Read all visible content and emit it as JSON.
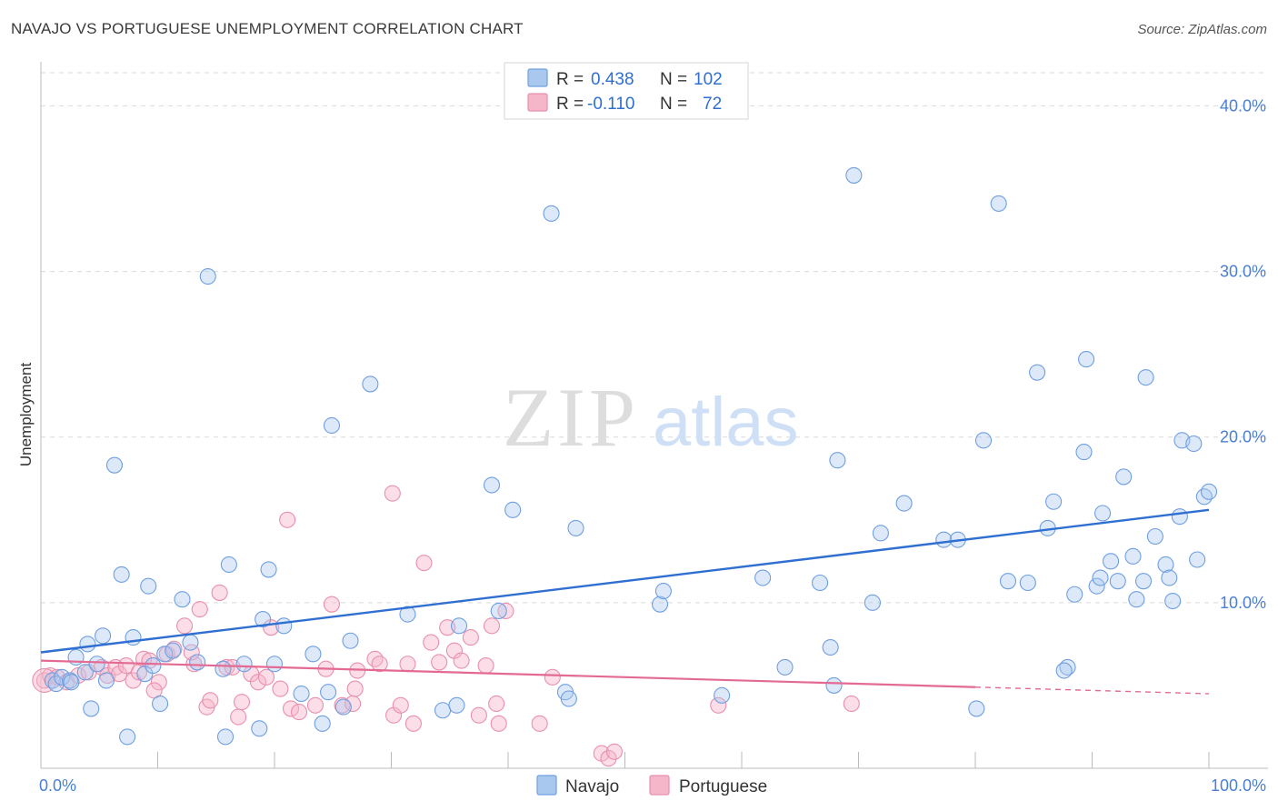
{
  "title": "NAVAJO VS PORTUGUESE UNEMPLOYMENT CORRELATION CHART",
  "source": "Source: ZipAtlas.com",
  "watermark": {
    "zip": "ZIP",
    "atlas": "atlas"
  },
  "colors": {
    "navajo_fill": "#a9c8f0",
    "navajo_stroke": "#6f9fe0",
    "navajo_line": "#2f6fd1",
    "portuguese_fill": "#f6b6c9",
    "portuguese_stroke": "#e890ad",
    "portuguese_line": "#e36a93",
    "grid": "#d9d9d9",
    "tick_text": "#4a7fd4"
  },
  "legend": {
    "rows": [
      {
        "r_label": "R =",
        "r_value": "0.438",
        "n_label": "N =",
        "n_value": "102",
        "series": "navajo"
      },
      {
        "r_label": "R =",
        "r_value": "-0.110",
        "n_label": "N =",
        "n_value": "72",
        "series": "portuguese"
      }
    ]
  },
  "bottom_legend": [
    "Navajo",
    "Portuguese"
  ],
  "chart_data": {
    "type": "scatter",
    "title": "NAVAJO VS PORTUGUESE UNEMPLOYMENT CORRELATION CHART",
    "xlabel": "",
    "ylabel": "Unemployment",
    "xlim": [
      0,
      100
    ],
    "ylim": [
      0,
      42
    ],
    "x_tick_labels": [
      {
        "value": 0,
        "label": "0.0%"
      },
      {
        "value": 100,
        "label": "100.0%"
      }
    ],
    "y_tick_labels": [
      {
        "value": 10,
        "label": "10.0%"
      },
      {
        "value": 20,
        "label": "20.0%"
      },
      {
        "value": 30,
        "label": "30.0%"
      },
      {
        "value": 40,
        "label": "40.0%"
      }
    ],
    "grid": true,
    "legend_position": "top-center",
    "series": [
      {
        "name": "Navajo",
        "r": 0.438,
        "n": 102,
        "trend": {
          "x": [
            0,
            100
          ],
          "y": [
            7.0,
            15.6
          ]
        },
        "points": [
          [
            1,
            5.3
          ],
          [
            1.3,
            5.1
          ],
          [
            1.8,
            5.5
          ],
          [
            2.5,
            5.3
          ],
          [
            2.6,
            5.2
          ],
          [
            3,
            6.7
          ],
          [
            3.8,
            5.8
          ],
          [
            4,
            7.5
          ],
          [
            4.3,
            3.6
          ],
          [
            4.8,
            6.3
          ],
          [
            5.3,
            8
          ],
          [
            5.6,
            5.3
          ],
          [
            6.3,
            18.3
          ],
          [
            6.9,
            11.7
          ],
          [
            7.4,
            1.9
          ],
          [
            7.9,
            7.9
          ],
          [
            8.9,
            5.7
          ],
          [
            9.2,
            11
          ],
          [
            9.6,
            6.2
          ],
          [
            10.2,
            3.9
          ],
          [
            10.6,
            6.9
          ],
          [
            11.3,
            7.1
          ],
          [
            12.1,
            10.2
          ],
          [
            12.8,
            7.6
          ],
          [
            13.4,
            6.4
          ],
          [
            14.3,
            29.7
          ],
          [
            15.6,
            6
          ],
          [
            15.8,
            1.9
          ],
          [
            16.1,
            12.3
          ],
          [
            17.4,
            6.3
          ],
          [
            18.7,
            2.4
          ],
          [
            19,
            9
          ],
          [
            19.5,
            12
          ],
          [
            20,
            6.3
          ],
          [
            20.8,
            8.6
          ],
          [
            22.3,
            4.5
          ],
          [
            23.3,
            6.9
          ],
          [
            24.1,
            2.7
          ],
          [
            24.6,
            4.6
          ],
          [
            24.9,
            20.7
          ],
          [
            25.9,
            3.7
          ],
          [
            26.5,
            7.7
          ],
          [
            28.2,
            23.2
          ],
          [
            31.4,
            9.3
          ],
          [
            34.4,
            3.5
          ],
          [
            35.6,
            3.8
          ],
          [
            35.8,
            8.6
          ],
          [
            39.2,
            9.5
          ],
          [
            38.6,
            17.1
          ],
          [
            40.4,
            15.6
          ],
          [
            43.7,
            33.5
          ],
          [
            44.9,
            4.6
          ],
          [
            45.2,
            4.2
          ],
          [
            45.8,
            14.5
          ],
          [
            53,
            9.9
          ],
          [
            53.3,
            10.7
          ],
          [
            58.3,
            4.4
          ],
          [
            61.8,
            11.5
          ],
          [
            63.7,
            6.1
          ],
          [
            66.7,
            11.2
          ],
          [
            67.6,
            7.3
          ],
          [
            67.9,
            5
          ],
          [
            68.2,
            18.6
          ],
          [
            69.6,
            35.8
          ],
          [
            71.2,
            10
          ],
          [
            71.9,
            14.2
          ],
          [
            73.9,
            16
          ],
          [
            77.3,
            13.8
          ],
          [
            78.5,
            13.8
          ],
          [
            80.7,
            19.8
          ],
          [
            80.1,
            3.6
          ],
          [
            82,
            34.1
          ],
          [
            82.8,
            11.3
          ],
          [
            84.5,
            11.2
          ],
          [
            85.3,
            23.9
          ],
          [
            86.2,
            14.5
          ],
          [
            86.7,
            16.1
          ],
          [
            87.9,
            6.1
          ],
          [
            87.6,
            5.9
          ],
          [
            88.5,
            10.5
          ],
          [
            89.3,
            19.1
          ],
          [
            89.5,
            24.7
          ],
          [
            90.4,
            11
          ],
          [
            90.7,
            11.5
          ],
          [
            90.9,
            15.4
          ],
          [
            91.6,
            12.5
          ],
          [
            92.2,
            11.3
          ],
          [
            92.7,
            17.6
          ],
          [
            93.5,
            12.8
          ],
          [
            93.8,
            10.2
          ],
          [
            94.4,
            11.3
          ],
          [
            94.6,
            23.6
          ],
          [
            95.4,
            14
          ],
          [
            96.3,
            12.3
          ],
          [
            96.6,
            11.5
          ],
          [
            96.9,
            10.1
          ],
          [
            97.5,
            15.2
          ],
          [
            97.7,
            19.8
          ],
          [
            98.7,
            19.6
          ],
          [
            99,
            12.6
          ],
          [
            99.6,
            16.4
          ],
          [
            100,
            16.7
          ]
        ]
      },
      {
        "name": "Portuguese",
        "r": -0.11,
        "n": 72,
        "trend": {
          "x": [
            0,
            80
          ],
          "y": [
            6.5,
            4.9
          ],
          "dashed_x": [
            80,
            100
          ],
          "dashed_y": [
            4.9,
            4.5
          ]
        },
        "points": [
          [
            0.3,
            5.3
          ],
          [
            0.8,
            5.6
          ],
          [
            1.4,
            5.5
          ],
          [
            2.2,
            5.2
          ],
          [
            3.2,
            5.6
          ],
          [
            4.1,
            5.8
          ],
          [
            5.2,
            6.1
          ],
          [
            5.7,
            5.6
          ],
          [
            6.4,
            6.1
          ],
          [
            6.7,
            5.7
          ],
          [
            7.3,
            6.2
          ],
          [
            7.9,
            5.3
          ],
          [
            8.4,
            5.8
          ],
          [
            8.8,
            6.6
          ],
          [
            9.3,
            6.5
          ],
          [
            10.1,
            5.2
          ],
          [
            10.8,
            6.9
          ],
          [
            11.4,
            7.2
          ],
          [
            12.3,
            8.6
          ],
          [
            13.1,
            6.3
          ],
          [
            13.6,
            9.6
          ],
          [
            14.2,
            3.7
          ],
          [
            14.5,
            4.1
          ],
          [
            15.3,
            10.6
          ],
          [
            15.9,
            6.1
          ],
          [
            16.4,
            6.1
          ],
          [
            16.9,
            3.1
          ],
          [
            18,
            5.7
          ],
          [
            18.6,
            5.2
          ],
          [
            19.3,
            5.5
          ],
          [
            19.7,
            8.5
          ],
          [
            20.5,
            4.8
          ],
          [
            21.1,
            15
          ],
          [
            21.4,
            3.6
          ],
          [
            22.1,
            3.4
          ],
          [
            23.5,
            3.8
          ],
          [
            24.4,
            6
          ],
          [
            24.9,
            9.9
          ],
          [
            25.8,
            3.8
          ],
          [
            26.7,
            3.9
          ],
          [
            26.9,
            4.8
          ],
          [
            27.1,
            5.9
          ],
          [
            28.6,
            6.6
          ],
          [
            29,
            6.3
          ],
          [
            30.2,
            3.2
          ],
          [
            30.8,
            3.8
          ],
          [
            31.4,
            6.3
          ],
          [
            31.9,
            2.7
          ],
          [
            32.8,
            12.4
          ],
          [
            33.4,
            7.6
          ],
          [
            34.1,
            6.4
          ],
          [
            34.8,
            8.5
          ],
          [
            35.4,
            7.1
          ],
          [
            36,
            6.5
          ],
          [
            36.8,
            7.9
          ],
          [
            37.5,
            3.2
          ],
          [
            38.1,
            6.2
          ],
          [
            38.6,
            8.6
          ],
          [
            39,
            3.9
          ],
          [
            39.2,
            2.7
          ],
          [
            39.8,
            9.5
          ],
          [
            42.7,
            2.7
          ],
          [
            43.8,
            5.5
          ],
          [
            48,
            0.9
          ],
          [
            48.6,
            0.6
          ],
          [
            49.1,
            1
          ],
          [
            58,
            3.8
          ],
          [
            69.4,
            3.9
          ],
          [
            30.1,
            16.6
          ],
          [
            12.9,
            7
          ],
          [
            9.7,
            4.7
          ],
          [
            17.2,
            4
          ]
        ]
      }
    ]
  }
}
